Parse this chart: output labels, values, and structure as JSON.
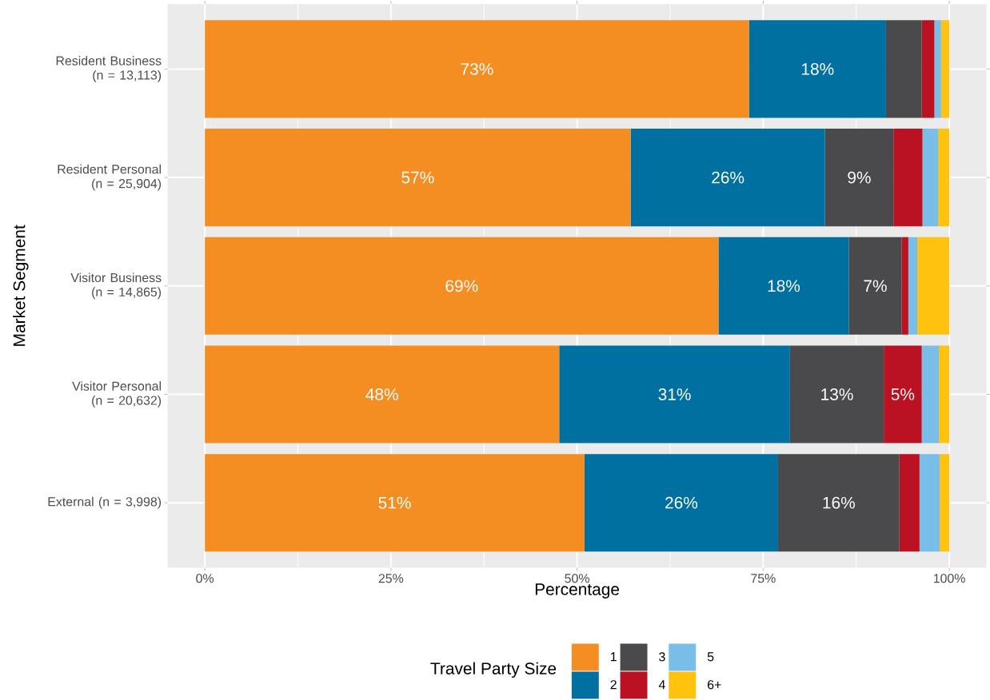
{
  "chart_data": {
    "type": "bar",
    "orientation": "horizontal",
    "stacked": true,
    "categories": [
      "Resident Business (n = 13,113)",
      "Resident Personal (n = 25,904)",
      "Visitor Business (n = 14,865)",
      "Visitor Personal (n = 20,632)",
      "External (n = 3,998)"
    ],
    "series": [
      {
        "name": "1",
        "color": "#f58e22",
        "values": [
          73.1,
          57.2,
          69.0,
          47.6,
          51.0
        ],
        "value_labels": [
          "73%",
          "57%",
          "69%",
          "48%",
          "51%"
        ]
      },
      {
        "name": "2",
        "color": "#0070a0",
        "values": [
          18.4,
          26.1,
          17.5,
          31.0,
          26.0
        ],
        "value_labels": [
          "18%",
          "26%",
          "18%",
          "31%",
          "26%"
        ]
      },
      {
        "name": "3",
        "color": "#4a4a4c",
        "values": [
          4.8,
          9.2,
          7.1,
          12.6,
          16.3
        ],
        "value_labels": [
          null,
          "9%",
          "7%",
          "13%",
          "16%"
        ]
      },
      {
        "name": "4",
        "color": "#ba1222",
        "values": [
          1.7,
          3.9,
          0.9,
          5.1,
          2.7
        ],
        "value_labels": [
          null,
          null,
          null,
          "5%",
          null
        ]
      },
      {
        "name": "5",
        "color": "#78bee8",
        "values": [
          0.9,
          2.1,
          1.2,
          2.3,
          2.7
        ]
      },
      {
        "name": "6+",
        "color": "#ffc20e",
        "values": [
          1.1,
          1.5,
          4.3,
          1.4,
          1.3
        ]
      }
    ],
    "xlim": [
      -5,
      105
    ],
    "xticks": [
      {
        "value": 0,
        "label": "0%"
      },
      {
        "value": 25,
        "label": "25%"
      },
      {
        "value": 50,
        "label": "50%"
      },
      {
        "value": 75,
        "label": "75%"
      },
      {
        "value": 100,
        "label": "100%"
      }
    ],
    "xlabel": "Percentage",
    "ylabel": "Market Segment",
    "legend": "bottom",
    "legend_title": "Travel Party Size",
    "grid": true
  }
}
